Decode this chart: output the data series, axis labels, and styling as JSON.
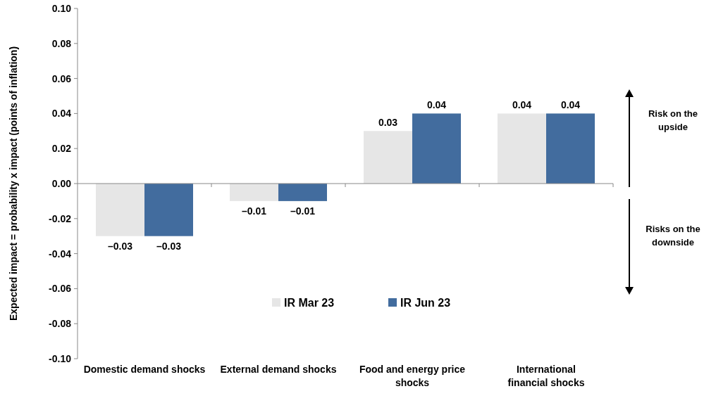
{
  "chart_data": {
    "type": "bar",
    "ylabel": "Expected impact = probability x impact (points of inflation)",
    "categories": [
      "Domestic demand shocks",
      "External demand shocks",
      "Food and energy price shocks",
      "International financial shocks"
    ],
    "series": [
      {
        "name": "IR Mar 23",
        "color": "#e6e6e6",
        "values": [
          -0.03,
          -0.01,
          0.03,
          0.04
        ],
        "value_labels": [
          "–0.03",
          "–0.01",
          "0.03",
          "0.04"
        ]
      },
      {
        "name": "IR Jun 23",
        "color": "#426c9e",
        "values": [
          -0.03,
          -0.01,
          0.04,
          0.04
        ],
        "value_labels": [
          "–0.03",
          "–0.01",
          "0.04",
          "0.04"
        ]
      }
    ],
    "ylim": [
      -0.1,
      0.1
    ],
    "yticks": [
      {
        "value": -0.1,
        "label": "-0.10"
      },
      {
        "value": -0.08,
        "label": "-0.08"
      },
      {
        "value": -0.06,
        "label": "-0.06"
      },
      {
        "value": -0.04,
        "label": "-0.04"
      },
      {
        "value": -0.02,
        "label": "-0.02"
      },
      {
        "value": 0,
        "label": "0.00"
      },
      {
        "value": 0.02,
        "label": "0.02"
      },
      {
        "value": 0.04,
        "label": "0.04"
      },
      {
        "value": 0.06,
        "label": "0.06"
      },
      {
        "value": 0.08,
        "label": "0.08"
      },
      {
        "value": 0.1,
        "label": "0.10"
      }
    ],
    "legend": "bottom",
    "annotations": [
      "Risk on the upside",
      "Risks on the downside"
    ]
  }
}
